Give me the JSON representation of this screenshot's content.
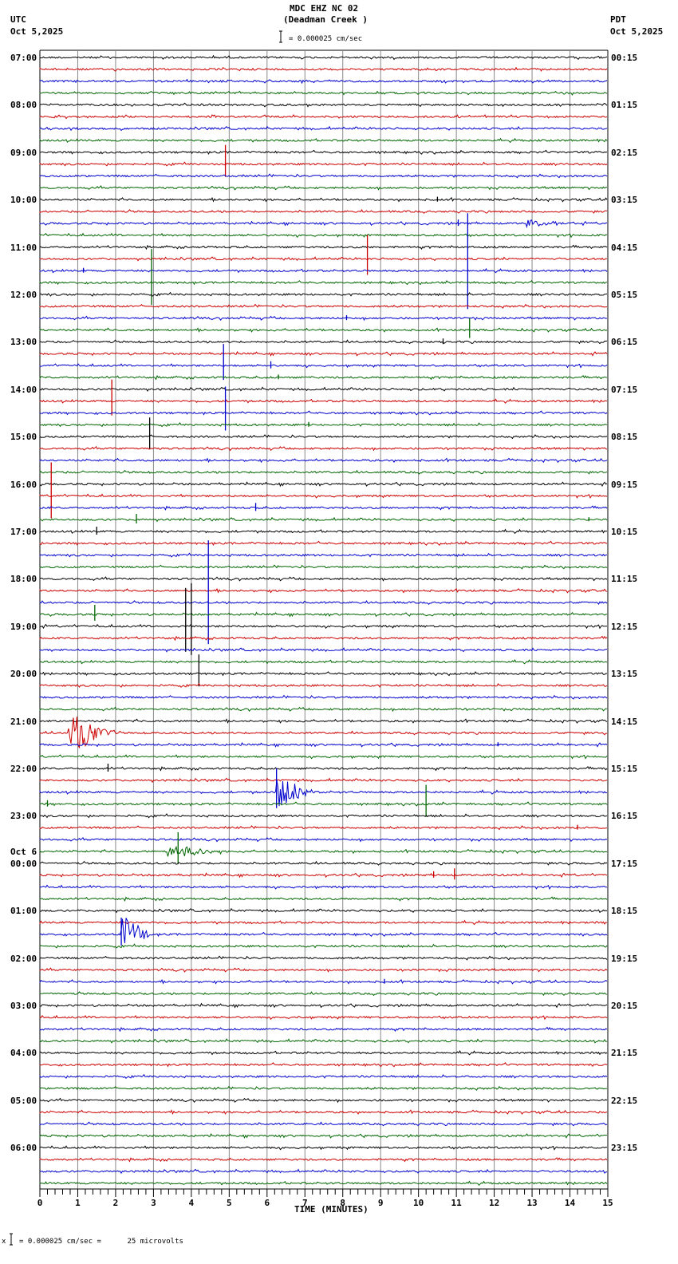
{
  "header": {
    "title": "MDC EHZ NC 02",
    "subtitle": "(Deadman Creek )",
    "left_tz": "UTC",
    "left_date": "Oct 5,2025",
    "right_tz": "PDT",
    "right_date": "Oct 5,2025",
    "scale_label": "= 0.000025 cm/sec"
  },
  "footer": {
    "scale_note": "= 0.000025 cm/sec =      25 microvolts",
    "marker": "x"
  },
  "chart_data": {
    "type": "line",
    "title": "MDC EHZ NC 02 (Deadman Creek )",
    "xlabel": "TIME (MINUTES)",
    "ylabel": "",
    "xlim": [
      0,
      15
    ],
    "x_ticks": [
      0,
      1,
      2,
      3,
      4,
      5,
      6,
      7,
      8,
      9,
      10,
      11,
      12,
      13,
      14,
      15
    ],
    "grid": true,
    "trace_colors": [
      "#000000",
      "#cc0000",
      "#0000cc",
      "#006600"
    ],
    "traces_per_hour": 4,
    "minutes_per_trace": 15,
    "left_labels": [
      {
        "trace": 0,
        "text": "07:00"
      },
      {
        "trace": 4,
        "text": "08:00"
      },
      {
        "trace": 8,
        "text": "09:00"
      },
      {
        "trace": 12,
        "text": "10:00"
      },
      {
        "trace": 16,
        "text": "11:00"
      },
      {
        "trace": 20,
        "text": "12:00"
      },
      {
        "trace": 24,
        "text": "13:00"
      },
      {
        "trace": 28,
        "text": "14:00"
      },
      {
        "trace": 32,
        "text": "15:00"
      },
      {
        "trace": 36,
        "text": "16:00"
      },
      {
        "trace": 40,
        "text": "17:00"
      },
      {
        "trace": 44,
        "text": "18:00"
      },
      {
        "trace": 48,
        "text": "19:00"
      },
      {
        "trace": 52,
        "text": "20:00"
      },
      {
        "trace": 56,
        "text": "21:00"
      },
      {
        "trace": 60,
        "text": "22:00"
      },
      {
        "trace": 64,
        "text": "23:00"
      },
      {
        "trace": 68,
        "text": "00:00",
        "date": "Oct 6"
      },
      {
        "trace": 72,
        "text": "01:00"
      },
      {
        "trace": 76,
        "text": "02:00"
      },
      {
        "trace": 80,
        "text": "03:00"
      },
      {
        "trace": 84,
        "text": "04:00"
      },
      {
        "trace": 88,
        "text": "05:00"
      },
      {
        "trace": 92,
        "text": "06:00"
      }
    ],
    "right_labels": [
      {
        "trace": 0,
        "text": "00:15"
      },
      {
        "trace": 4,
        "text": "01:15"
      },
      {
        "trace": 8,
        "text": "02:15"
      },
      {
        "trace": 12,
        "text": "03:15"
      },
      {
        "trace": 16,
        "text": "04:15"
      },
      {
        "trace": 20,
        "text": "05:15"
      },
      {
        "trace": 24,
        "text": "06:15"
      },
      {
        "trace": 28,
        "text": "07:15"
      },
      {
        "trace": 32,
        "text": "08:15"
      },
      {
        "trace": 36,
        "text": "09:15"
      },
      {
        "trace": 40,
        "text": "10:15"
      },
      {
        "trace": 44,
        "text": "11:15"
      },
      {
        "trace": 48,
        "text": "12:15"
      },
      {
        "trace": 52,
        "text": "13:15"
      },
      {
        "trace": 56,
        "text": "14:15"
      },
      {
        "trace": 60,
        "text": "15:15"
      },
      {
        "trace": 64,
        "text": "16:15"
      },
      {
        "trace": 68,
        "text": "17:15"
      },
      {
        "trace": 72,
        "text": "18:15"
      },
      {
        "trace": 76,
        "text": "19:15"
      },
      {
        "trace": 80,
        "text": "20:15"
      },
      {
        "trace": 84,
        "text": "21:15"
      },
      {
        "trace": 88,
        "text": "22:15"
      },
      {
        "trace": 92,
        "text": "23:15"
      }
    ],
    "events": [
      {
        "trace": 9,
        "minute": 4.9,
        "amp": 40,
        "type": "spike"
      },
      {
        "trace": 12,
        "minute": 10.5,
        "amp": 6,
        "type": "spike"
      },
      {
        "trace": 14,
        "minute": 11.05,
        "amp": 8,
        "type": "spike"
      },
      {
        "trace": 14,
        "minute": 12.9,
        "amp": 5,
        "dur": 1.2,
        "type": "burst"
      },
      {
        "trace": 17,
        "minute": 8.65,
        "amp": 50,
        "type": "spike"
      },
      {
        "trace": 18,
        "minute": 11.3,
        "amp": 120,
        "type": "spike"
      },
      {
        "trace": 18,
        "minute": 1.15,
        "amp": 6,
        "type": "spike"
      },
      {
        "trace": 19,
        "minute": 2.95,
        "amp": 70,
        "type": "spike"
      },
      {
        "trace": 22,
        "minute": 8.1,
        "amp": 6,
        "type": "spike"
      },
      {
        "trace": 23,
        "minute": 11.35,
        "amp": 25,
        "type": "spike"
      },
      {
        "trace": 24,
        "minute": 10.65,
        "amp": 7,
        "type": "spike"
      },
      {
        "trace": 26,
        "minute": 4.85,
        "amp": 45,
        "type": "spike"
      },
      {
        "trace": 26,
        "minute": 6.1,
        "amp": 9,
        "type": "spike"
      },
      {
        "trace": 27,
        "minute": 6.3,
        "amp": 6,
        "type": "spike"
      },
      {
        "trace": 29,
        "minute": 1.9,
        "amp": 45,
        "type": "spike"
      },
      {
        "trace": 30,
        "minute": 4.9,
        "amp": 55,
        "type": "spike"
      },
      {
        "trace": 31,
        "minute": 7.1,
        "amp": 6,
        "type": "spike"
      },
      {
        "trace": 32,
        "minute": 2.9,
        "amp": 40,
        "type": "spike"
      },
      {
        "trace": 37,
        "minute": 0.3,
        "amp": 70,
        "type": "spike"
      },
      {
        "trace": 38,
        "minute": 5.7,
        "amp": 10,
        "type": "spike"
      },
      {
        "trace": 39,
        "minute": 2.55,
        "amp": 12,
        "type": "spike"
      },
      {
        "trace": 39,
        "minute": 14.5,
        "amp": 5,
        "type": "spike"
      },
      {
        "trace": 40,
        "minute": 1.5,
        "amp": 10,
        "type": "spike"
      },
      {
        "trace": 47,
        "minute": 1.45,
        "amp": 20,
        "type": "spike"
      },
      {
        "trace": 46,
        "minute": 4.45,
        "amp": 130,
        "type": "spike"
      },
      {
        "trace": 48,
        "minute": 3.85,
        "amp": 80,
        "type": "spike"
      },
      {
        "trace": 48,
        "minute": 4.0,
        "amp": 90,
        "type": "spike"
      },
      {
        "trace": 52,
        "minute": 4.2,
        "amp": 40,
        "type": "spike"
      },
      {
        "trace": 57,
        "minute": 0.8,
        "amp": 25,
        "dur": 1.2,
        "type": "burst"
      },
      {
        "trace": 58,
        "minute": 12.1,
        "amp": 5,
        "type": "spike"
      },
      {
        "trace": 60,
        "minute": 1.8,
        "amp": 10,
        "type": "spike"
      },
      {
        "trace": 62,
        "minute": 6.3,
        "amp": 20,
        "dur": 0.9,
        "type": "burst"
      },
      {
        "trace": 62,
        "minute": 6.25,
        "amp": 50,
        "type": "spike"
      },
      {
        "trace": 63,
        "minute": 10.2,
        "amp": 40,
        "type": "spike"
      },
      {
        "trace": 63,
        "minute": 0.2,
        "amp": 8,
        "type": "spike"
      },
      {
        "trace": 65,
        "minute": 14.2,
        "amp": 6,
        "type": "spike"
      },
      {
        "trace": 67,
        "minute": 3.4,
        "amp": 10,
        "dur": 1.4,
        "type": "burst"
      },
      {
        "trace": 67,
        "minute": 3.65,
        "amp": 40,
        "type": "spike"
      },
      {
        "trace": 69,
        "minute": 10.4,
        "amp": 8,
        "type": "spike"
      },
      {
        "trace": 69,
        "minute": 10.95,
        "amp": 14,
        "type": "spike"
      },
      {
        "trace": 74,
        "minute": 2.2,
        "amp": 25,
        "dur": 0.7,
        "type": "burst"
      },
      {
        "trace": 74,
        "minute": 2.15,
        "amp": 35,
        "type": "spike"
      },
      {
        "trace": 78,
        "minute": 9.1,
        "amp": 6,
        "type": "spike"
      }
    ]
  }
}
